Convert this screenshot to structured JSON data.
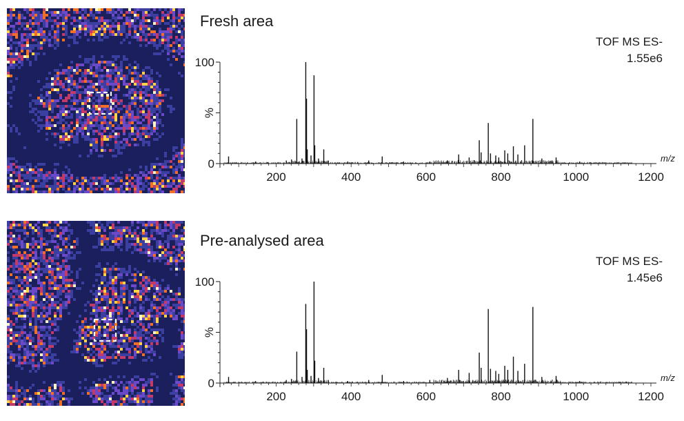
{
  "chart_data": [
    {
      "type": "line",
      "title": "Fresh area",
      "instrument_label": "TOF MS ES-",
      "intensity_label": "1.55e6",
      "ylabel": "%",
      "xlabel": "m/z",
      "xlim": [
        50,
        1200
      ],
      "ylim": [
        0,
        100
      ],
      "x_ticks": [
        200,
        400,
        600,
        800,
        1000,
        1200
      ],
      "y_ticks": [
        0,
        50,
        100
      ],
      "y_tick_labels": [
        "0",
        "",
        "100"
      ],
      "peaks": [
        {
          "mz": 73,
          "rel": 7
        },
        {
          "mz": 145,
          "rel": 2
        },
        {
          "mz": 227,
          "rel": 3
        },
        {
          "mz": 241,
          "rel": 4
        },
        {
          "mz": 255,
          "rel": 44
        },
        {
          "mz": 269,
          "rel": 5
        },
        {
          "mz": 279,
          "rel": 100
        },
        {
          "mz": 281,
          "rel": 64
        },
        {
          "mz": 283,
          "rel": 14
        },
        {
          "mz": 293,
          "rel": 8
        },
        {
          "mz": 301,
          "rel": 87
        },
        {
          "mz": 303,
          "rel": 18
        },
        {
          "mz": 313,
          "rel": 5
        },
        {
          "mz": 327,
          "rel": 14
        },
        {
          "mz": 339,
          "rel": 3
        },
        {
          "mz": 391,
          "rel": 2
        },
        {
          "mz": 447,
          "rel": 3
        },
        {
          "mz": 483,
          "rel": 7
        },
        {
          "mz": 540,
          "rel": 2
        },
        {
          "mz": 610,
          "rel": 2
        },
        {
          "mz": 657,
          "rel": 3
        },
        {
          "mz": 687,
          "rel": 9
        },
        {
          "mz": 715,
          "rel": 6
        },
        {
          "mz": 742,
          "rel": 23
        },
        {
          "mz": 747,
          "rel": 11
        },
        {
          "mz": 766,
          "rel": 40
        },
        {
          "mz": 772,
          "rel": 10
        },
        {
          "mz": 786,
          "rel": 8
        },
        {
          "mz": 794,
          "rel": 6
        },
        {
          "mz": 810,
          "rel": 13
        },
        {
          "mz": 818,
          "rel": 10
        },
        {
          "mz": 833,
          "rel": 17
        },
        {
          "mz": 845,
          "rel": 9
        },
        {
          "mz": 863,
          "rel": 18
        },
        {
          "mz": 885,
          "rel": 44
        },
        {
          "mz": 909,
          "rel": 5
        },
        {
          "mz": 947,
          "rel": 6
        },
        {
          "mz": 1010,
          "rel": 2
        }
      ]
    },
    {
      "type": "line",
      "title": "Pre-analysed area",
      "instrument_label": "TOF MS ES-",
      "intensity_label": "1.45e6",
      "ylabel": "%",
      "xlabel": "m/z",
      "xlim": [
        50,
        1200
      ],
      "ylim": [
        0,
        100
      ],
      "x_ticks": [
        200,
        400,
        600,
        800,
        1000,
        1200
      ],
      "y_ticks": [
        0,
        50,
        100
      ],
      "y_tick_labels": [
        "0",
        "",
        "100"
      ],
      "peaks": [
        {
          "mz": 73,
          "rel": 6
        },
        {
          "mz": 145,
          "rel": 2
        },
        {
          "mz": 227,
          "rel": 3
        },
        {
          "mz": 241,
          "rel": 4
        },
        {
          "mz": 255,
          "rel": 31
        },
        {
          "mz": 269,
          "rel": 6
        },
        {
          "mz": 279,
          "rel": 78
        },
        {
          "mz": 281,
          "rel": 53
        },
        {
          "mz": 283,
          "rel": 13
        },
        {
          "mz": 293,
          "rel": 7
        },
        {
          "mz": 301,
          "rel": 100
        },
        {
          "mz": 303,
          "rel": 22
        },
        {
          "mz": 313,
          "rel": 5
        },
        {
          "mz": 327,
          "rel": 15
        },
        {
          "mz": 339,
          "rel": 3
        },
        {
          "mz": 391,
          "rel": 2
        },
        {
          "mz": 447,
          "rel": 3
        },
        {
          "mz": 483,
          "rel": 8
        },
        {
          "mz": 540,
          "rel": 2
        },
        {
          "mz": 610,
          "rel": 3
        },
        {
          "mz": 657,
          "rel": 5
        },
        {
          "mz": 687,
          "rel": 13
        },
        {
          "mz": 715,
          "rel": 10
        },
        {
          "mz": 742,
          "rel": 30
        },
        {
          "mz": 747,
          "rel": 15
        },
        {
          "mz": 766,
          "rel": 73
        },
        {
          "mz": 772,
          "rel": 14
        },
        {
          "mz": 786,
          "rel": 12
        },
        {
          "mz": 794,
          "rel": 9
        },
        {
          "mz": 810,
          "rel": 17
        },
        {
          "mz": 818,
          "rel": 13
        },
        {
          "mz": 833,
          "rel": 26
        },
        {
          "mz": 845,
          "rel": 12
        },
        {
          "mz": 863,
          "rel": 19
        },
        {
          "mz": 885,
          "rel": 75
        },
        {
          "mz": 909,
          "rel": 6
        },
        {
          "mz": 947,
          "rel": 7
        },
        {
          "mz": 1010,
          "rel": 2
        }
      ]
    }
  ],
  "images": {
    "colormap": [
      "#1b1f5c",
      "#3a3fa0",
      "#6a4ac8",
      "#c23a6a",
      "#f0702a",
      "#ffd24a",
      "#fff6c8"
    ],
    "roi_marker": "dashed-white-square"
  }
}
